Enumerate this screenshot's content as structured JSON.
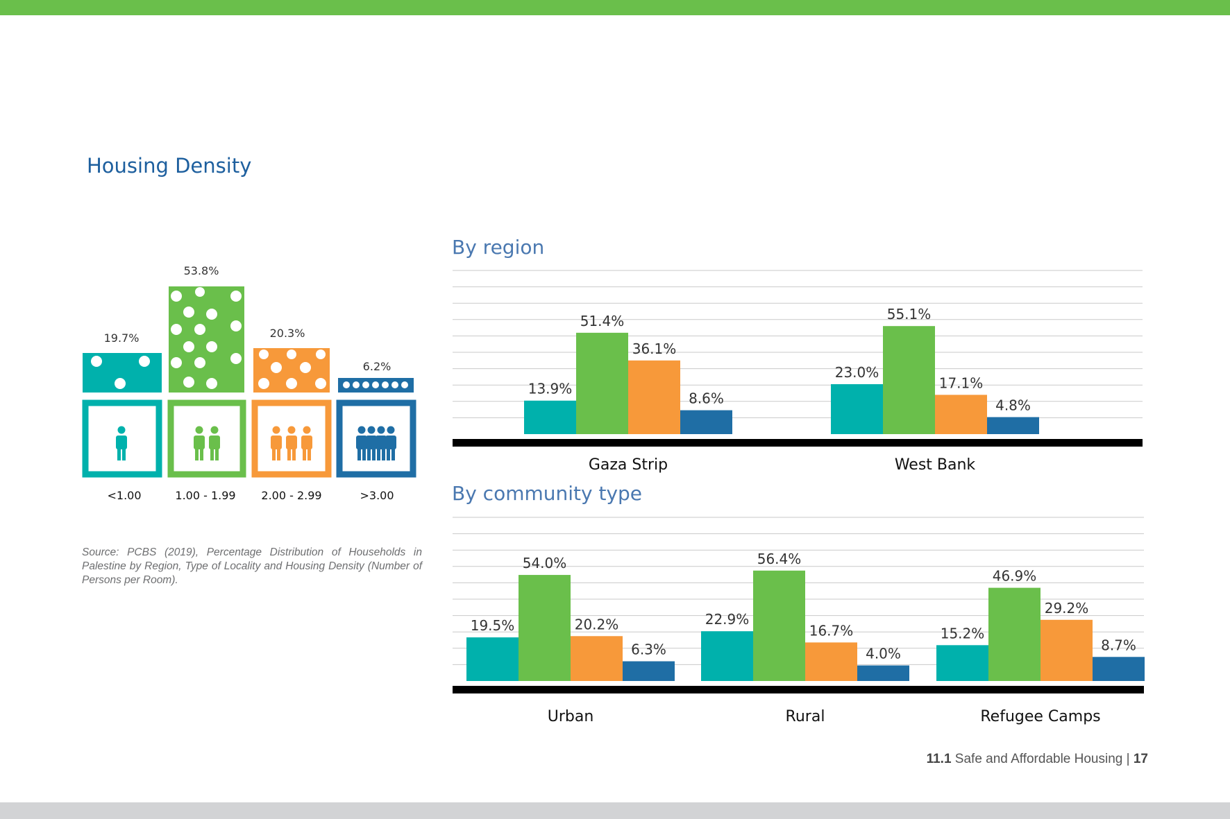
{
  "page": {
    "title": "Housing Density",
    "source": "Source: PCBS (2019), Percentage Distribution of Households in Palestine by Region, Type of Locality and Housing Density (Number of Persons per Room).",
    "footer": {
      "section": "11.1",
      "text": "Safe and Affordable Housing",
      "separator": "|",
      "page": "17"
    }
  },
  "infographic": {
    "items": [
      {
        "range": "<1.00",
        "percent": "19.7%",
        "value": 19.7,
        "color": "#00b1ac",
        "persons": 1
      },
      {
        "range": "1.00 - 1.99",
        "percent": "53.8%",
        "value": 53.8,
        "color": "#6abf4b",
        "persons": 2
      },
      {
        "range": "2.00 - 2.99",
        "percent": "20.3%",
        "value": 20.3,
        "color": "#f7993a",
        "persons": 3
      },
      {
        "range": ">3.00",
        "percent": "6.2%",
        "value": 6.2,
        "color": "#1f6ea5",
        "persons": 4
      }
    ]
  },
  "chart_data": [
    {
      "type": "bar",
      "title": "By region",
      "categories": [
        "Gaza Strip",
        "West Bank"
      ],
      "series": [
        {
          "values": [
            13.9,
            23.0
          ],
          "labels": [
            "13.9%",
            "23.0%"
          ],
          "color": "#00b1ac"
        },
        {
          "values": [
            51.4,
            55.1
          ],
          "labels": [
            "51.4%",
            "55.1%"
          ],
          "color": "#6abf4b"
        },
        {
          "values": [
            36.1,
            17.1
          ],
          "labels": [
            "36.1%",
            "17.1%"
          ],
          "color": "#f7993a"
        },
        {
          "values": [
            8.6,
            4.8
          ],
          "labels": [
            "8.6%",
            "4.8%"
          ],
          "color": "#1f6ea5"
        }
      ],
      "grid": true,
      "legend": "none"
    },
    {
      "type": "bar",
      "title": "By community type",
      "categories": [
        "Urban",
        "Rural",
        "Refugee Camps"
      ],
      "series": [
        {
          "values": [
            19.5,
            22.9,
            15.2
          ],
          "labels": [
            "19.5%",
            "22.9%",
            "15.2%"
          ],
          "color": "#00b1ac"
        },
        {
          "values": [
            54.0,
            56.4,
            46.9
          ],
          "labels": [
            "54.0%",
            "56.4%",
            "46.9%"
          ],
          "color": "#6abf4b"
        },
        {
          "values": [
            20.2,
            16.7,
            29.2
          ],
          "labels": [
            "20.2%",
            "16.7%",
            "29.2%"
          ],
          "color": "#f7993a"
        },
        {
          "values": [
            6.3,
            4.0,
            8.7
          ],
          "labels": [
            "6.3%",
            "4.0%",
            "8.7%"
          ],
          "color": "#1f6ea5"
        }
      ],
      "grid": true,
      "legend": "none"
    }
  ]
}
